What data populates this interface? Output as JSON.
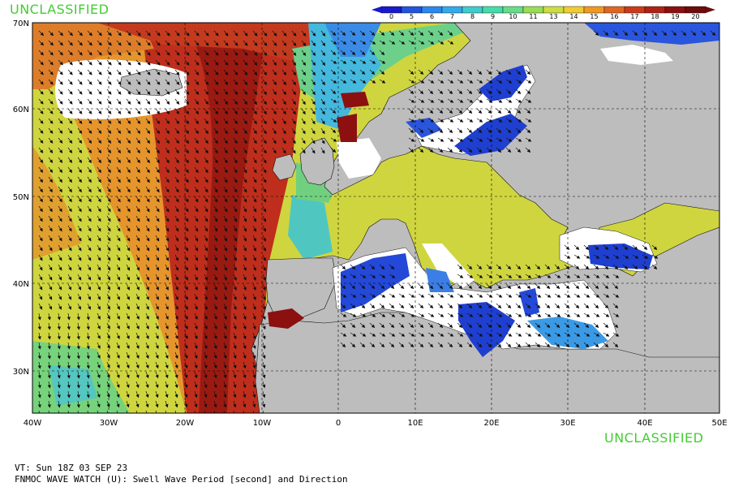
{
  "classification": {
    "top": "UNCLASSIFIED",
    "bottom": "UNCLASSIFIED"
  },
  "colorbar": {
    "labels": [
      "0",
      "5",
      "6",
      "7",
      "8",
      "9",
      "10",
      "11",
      "13",
      "14",
      "15",
      "16",
      "17",
      "18",
      "19",
      "20"
    ],
    "colors": [
      "#1a1acc",
      "#2255dd",
      "#2a88ee",
      "#33aaee",
      "#40cccc",
      "#44ddaa",
      "#66dd88",
      "#99dd55",
      "#ccdd44",
      "#eecc33",
      "#ee9922",
      "#e06622",
      "#cc3a1a",
      "#b02214",
      "#8c1010",
      "#6e0c0c"
    ]
  },
  "axes": {
    "lon_labels": [
      "40W",
      "30W",
      "20W",
      "10W",
      "0",
      "10E",
      "20E",
      "30E",
      "40E",
      "50E"
    ],
    "lat_labels": [
      "70N",
      "60N",
      "50N",
      "40N",
      "30N"
    ]
  },
  "map": {
    "land_color": "#bdbdbd",
    "calm_color": "#ffffff",
    "grid": true
  },
  "footer": {
    "valid_time": "VT: Sun 18Z 03 SEP 23",
    "product": "FNMOC WAVE WATCH (U): Swell Wave Period [second] and Direction"
  }
}
